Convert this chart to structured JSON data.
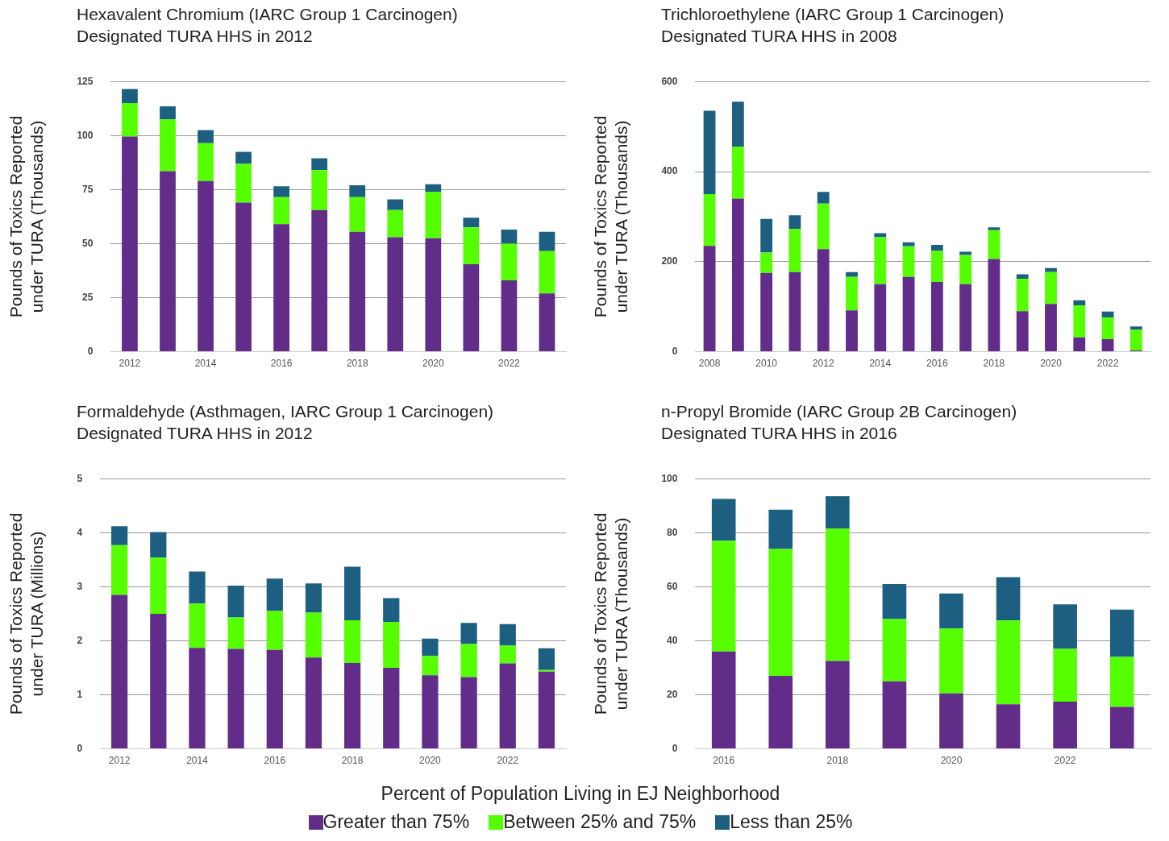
{
  "chart_data": [
    {
      "type": "bar",
      "title": "Hexavalent Chromium (IARC Group 1 Carcinogen)",
      "subtitle": "Designated TURA HHS in 2012",
      "ylabel": "Pounds of Toxics Reported\nunder TURA (Thousands)",
      "xlabel": "Percent of Population Living in EJ Neighborhood",
      "legend": "bottom",
      "stacked": true,
      "grid": "y",
      "ylim": [
        0,
        125
      ],
      "yticks": [
        0,
        25,
        50,
        75,
        100,
        125
      ],
      "categories": [
        "2012",
        null,
        "2014",
        null,
        "2016",
        null,
        "2018",
        null,
        "2020",
        null,
        "2022",
        null
      ],
      "series": [
        {
          "name": "Greater than 75%",
          "color": "#622d89",
          "values": [
            99.5,
            83.5,
            79,
            69,
            59,
            65.5,
            55.5,
            53,
            52.5,
            40.5,
            33,
            27
          ]
        },
        {
          "name": "Between 25% and 75%",
          "color": "#55ff00",
          "values": [
            15.5,
            24,
            17.5,
            18,
            12.5,
            18.5,
            16,
            12.5,
            21.5,
            17,
            17,
            19.5
          ]
        },
        {
          "name": "Less than 25%",
          "color": "#1c5f80",
          "values": [
            6.5,
            6,
            6,
            5.5,
            5,
            5.5,
            5.5,
            5,
            3.5,
            4.5,
            6.5,
            9
          ]
        }
      ]
    },
    {
      "type": "bar",
      "title": "Trichloroethylene (IARC Group 1 Carcinogen)",
      "subtitle": "Designated TURA HHS in 2008",
      "ylabel": "Pounds of Toxics Reported\nunder TURA (Thousands)",
      "stacked": true,
      "grid": "y",
      "ylim": [
        0,
        600
      ],
      "yticks": [
        0,
        200,
        400,
        600
      ],
      "categories": [
        "2008",
        null,
        "2010",
        null,
        "2012",
        null,
        "2014",
        null,
        "2016",
        null,
        "2018",
        null,
        "2020",
        null,
        "2022",
        null
      ],
      "series": [
        {
          "color": "#622d89",
          "values": [
            235,
            340,
            175,
            177,
            228,
            92,
            150,
            166,
            155,
            150,
            206,
            90,
            106,
            32,
            28,
            3
          ]
        },
        {
          "color": "#55ff00",
          "values": [
            115,
            115,
            45,
            96,
            101,
            74,
            104,
            68,
            69,
            65,
            64,
            72,
            71,
            71,
            48,
            46
          ]
        },
        {
          "color": "#1c5f80",
          "values": [
            185,
            100,
            75,
            30,
            26,
            11,
            9,
            9,
            13,
            7,
            6,
            10,
            9,
            11,
            13,
            7
          ]
        }
      ]
    },
    {
      "type": "bar",
      "title": "Formaldehyde (Asthmagen, IARC Group 1 Carcinogen)",
      "subtitle": "Designated TURA HHS in 2012",
      "ylabel": "Pounds of Toxics Reported\nunder TURA (Millions)",
      "stacked": true,
      "grid": "y",
      "ylim": [
        0,
        5
      ],
      "yticks": [
        0,
        1,
        2,
        3,
        4,
        5
      ],
      "categories": [
        "2012",
        null,
        "2014",
        null,
        "2016",
        null,
        "2018",
        null,
        "2020",
        null,
        "2022",
        null
      ],
      "series": [
        {
          "color": "#622d89",
          "values": [
            2.85,
            2.5,
            1.87,
            1.85,
            1.83,
            1.69,
            1.59,
            1.5,
            1.36,
            1.33,
            1.58,
            1.43
          ]
        },
        {
          "color": "#55ff00",
          "values": [
            0.92,
            1.04,
            0.82,
            0.58,
            0.72,
            0.83,
            0.79,
            0.85,
            0.36,
            0.61,
            0.33,
            0.03
          ]
        },
        {
          "color": "#1c5f80",
          "values": [
            0.35,
            0.47,
            0.59,
            0.59,
            0.6,
            0.54,
            0.99,
            0.44,
            0.32,
            0.39,
            0.4,
            0.4
          ]
        }
      ]
    },
    {
      "type": "bar",
      "title": "n-Propyl Bromide (IARC Group 2B Carcinogen)",
      "subtitle": "Designated TURA HHS in 2016",
      "ylabel": "Pounds of Toxics Reported\nunder TURA (Thousands)",
      "stacked": true,
      "grid": "y",
      "ylim": [
        0,
        100
      ],
      "yticks": [
        0,
        20,
        40,
        60,
        80,
        100
      ],
      "categories": [
        "2016",
        null,
        "2018",
        null,
        "2020",
        null,
        "2022",
        null
      ],
      "series": [
        {
          "color": "#622d89",
          "values": [
            36,
            27,
            32.5,
            25,
            20.5,
            16.5,
            17.5,
            15.5
          ]
        },
        {
          "color": "#55ff00",
          "values": [
            41,
            47,
            49,
            23,
            24,
            31,
            19.5,
            18.5
          ]
        },
        {
          "color": "#1c5f80",
          "values": [
            15.5,
            14.5,
            12,
            13,
            13,
            16,
            16.5,
            17.5
          ]
        }
      ]
    }
  ]
}
